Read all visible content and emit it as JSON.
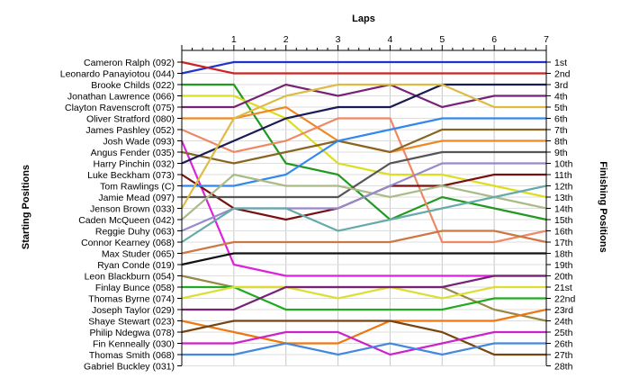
{
  "chart_data": {
    "type": "line",
    "title": "",
    "xlabel": "Laps",
    "ylabel_left": "Starting Positions",
    "ylabel_right": "Finishing Positions",
    "x": [
      0,
      1,
      2,
      3,
      4,
      5,
      6,
      7
    ],
    "x_tick_labels": [
      "1",
      "2",
      "3",
      "4",
      "5",
      "6",
      "7"
    ],
    "ylim": [
      1,
      28
    ],
    "y_inverted": true,
    "grid": true,
    "starting_labels": [
      "Cameron Ralph (092)",
      "Leonardo Panayiotou (044)",
      "Brooke Childs (022)",
      "Jonathan Lawrence (066)",
      "Clayton Ravenscroft (075)",
      "Oliver Stratford (080)",
      "James Pashley (052)",
      "Josh Wade (093)",
      "Angus Fender (035)",
      "Harry Pinchin (032)",
      "Luke Beckham (073)",
      "Tom Rawlings (C)",
      "Jamie Mead (097)",
      "Jenson Brown (033)",
      "Caden McQueen (042)",
      "Reggie Duhy (063)",
      "Connor Kearney (068)",
      "Max Studer (065)",
      "Ryan Conde (019)",
      "Leon Blackburn (054)",
      "Finlay Bunce (058)",
      "Thomas Byrne (074)",
      "Joseph Taylor (029)",
      "Shaye Stewart (023)",
      "Philip Ndegwa (078)",
      "Fin Kenneally (030)",
      "Thomas Smith (068)",
      "Gabriel Buckley (031)"
    ],
    "finishing_labels": [
      "1st",
      "2nd",
      "3rd",
      "4th",
      "5th",
      "6th",
      "7th",
      "8th",
      "9th",
      "10th",
      "11th",
      "12th",
      "13th",
      "14th",
      "15th",
      "16th",
      "17th",
      "18th",
      "19th",
      "20th",
      "21st",
      "22nd",
      "23rd",
      "24th",
      "25th",
      "26th",
      "27th",
      "28th"
    ],
    "series": [
      {
        "color": "#2233cc",
        "values": [
          2,
          1,
          1,
          1,
          1,
          1,
          1,
          1
        ]
      },
      {
        "color": "#cc2222",
        "values": [
          1,
          2,
          2,
          2,
          2,
          2,
          2,
          2
        ]
      },
      {
        "color": "#229922",
        "values": [
          3,
          3,
          10,
          11,
          15,
          13,
          14,
          15
        ]
      },
      {
        "color": "#dddd22",
        "values": [
          4,
          4,
          6,
          10,
          11,
          11,
          12,
          13
        ]
      },
      {
        "color": "#772277",
        "values": [
          5,
          5,
          3,
          4,
          3,
          5,
          4,
          4
        ]
      },
      {
        "color": "#ee8822",
        "values": [
          6,
          6,
          5,
          8,
          9,
          8,
          8,
          8
        ]
      },
      {
        "color": "#ee8866",
        "values": [
          7,
          9,
          8,
          6,
          6,
          17,
          17,
          16
        ]
      },
      {
        "color": "#dd22dd",
        "values": [
          8,
          19,
          20,
          20,
          20,
          20,
          20,
          20
        ]
      },
      {
        "color": "#886622",
        "values": [
          9,
          10,
          9,
          8,
          9,
          7,
          7,
          7
        ]
      },
      {
        "color": "#1a1a55",
        "values": [
          10,
          8,
          6,
          5,
          5,
          3,
          3,
          3
        ]
      },
      {
        "color": "#771111",
        "values": [
          11,
          14,
          15,
          14,
          12,
          12,
          11,
          11
        ]
      },
      {
        "color": "#3388ee",
        "values": [
          12,
          12,
          11,
          8,
          7,
          6,
          6,
          6
        ]
      },
      {
        "color": "#555555",
        "values": [
          13,
          13,
          13,
          13,
          10,
          9,
          9,
          9
        ]
      },
      {
        "color": "#ddbb44",
        "values": [
          14,
          6,
          4,
          3,
          3,
          3,
          5,
          5
        ]
      },
      {
        "color": "#aabb88",
        "values": [
          15,
          11,
          12,
          12,
          13,
          12,
          13,
          14
        ]
      },
      {
        "color": "#9988cc",
        "values": [
          16,
          14,
          14,
          14,
          12,
          10,
          10,
          10
        ]
      },
      {
        "color": "#66aaaa",
        "values": [
          17,
          14,
          14,
          16,
          15,
          14,
          13,
          12
        ]
      },
      {
        "color": "#cc7744",
        "values": [
          18,
          17,
          17,
          17,
          17,
          16,
          16,
          17
        ]
      },
      {
        "color": "#111111",
        "values": [
          19,
          18,
          18,
          18,
          18,
          18,
          18,
          18
        ]
      },
      {
        "color": "#998844",
        "values": [
          20,
          21,
          21,
          21,
          21,
          21,
          23,
          24
        ]
      },
      {
        "color": "#22aa22",
        "values": [
          21,
          21,
          23,
          23,
          23,
          23,
          22,
          22
        ]
      },
      {
        "color": "#dddd33",
        "values": [
          22,
          21,
          21,
          22,
          21,
          22,
          21,
          21
        ]
      },
      {
        "color": "#772277",
        "values": [
          23,
          23,
          21,
          21,
          21,
          21,
          20,
          20
        ]
      },
      {
        "color": "#ee7711",
        "values": [
          24,
          25,
          26,
          26,
          24,
          24,
          24,
          23
        ]
      },
      {
        "color": "#774411",
        "values": [
          25,
          24,
          24,
          24,
          24,
          25,
          27,
          27
        ]
      },
      {
        "color": "#cc22cc",
        "values": [
          26,
          26,
          25,
          25,
          27,
          26,
          25,
          25
        ]
      },
      {
        "color": "#4488dd",
        "values": [
          27,
          27,
          26,
          27,
          26,
          27,
          26,
          26
        ]
      }
    ]
  }
}
